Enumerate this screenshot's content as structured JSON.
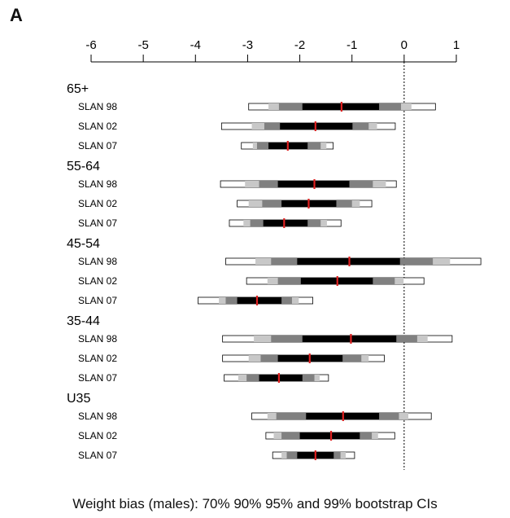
{
  "panel_label": "A",
  "caption": "Weight bias (males): 70% 90% 95% and 99% bootstrap CIs",
  "chart_data": {
    "type": "interval",
    "xlim": [
      -6,
      1
    ],
    "x_ticks": [
      -6,
      -5,
      -4,
      -3,
      -2,
      -1,
      0,
      1
    ],
    "x_tick_labels": [
      "-6",
      "-5",
      "-4",
      "-3",
      "-2",
      "-1",
      "0",
      "1"
    ],
    "reference_line": 0,
    "interval_levels": [
      "70%",
      "90%",
      "95%",
      "99%"
    ],
    "colors": {
      "ci70": "#000000",
      "ci90": "#808080",
      "ci95": "#c8c8c8",
      "ci99": "#ffffff",
      "estimate": "#e02020"
    },
    "groups": [
      {
        "name": "65+",
        "rows": [
          {
            "label": "SLAN 98",
            "estimate": -1.2,
            "ci70": [
              -1.95,
              -0.48
            ],
            "ci90": [
              -2.4,
              -0.06
            ],
            "ci95": [
              -2.6,
              0.14
            ],
            "ci99": [
              -2.98,
              0.6
            ]
          },
          {
            "label": "SLAN 02",
            "estimate": -1.7,
            "ci70": [
              -2.38,
              -0.99
            ],
            "ci90": [
              -2.68,
              -0.68
            ],
            "ci95": [
              -2.92,
              -0.52
            ],
            "ci99": [
              -3.5,
              -0.17
            ]
          },
          {
            "label": "SLAN 07",
            "estimate": -2.23,
            "ci70": [
              -2.6,
              -1.85
            ],
            "ci90": [
              -2.82,
              -1.6
            ],
            "ci95": [
              -2.9,
              -1.49
            ],
            "ci99": [
              -3.12,
              -1.36
            ]
          }
        ]
      },
      {
        "name": "55-64",
        "rows": [
          {
            "label": "SLAN 98",
            "estimate": -1.72,
            "ci70": [
              -2.42,
              -1.05
            ],
            "ci90": [
              -2.78,
              -0.6
            ],
            "ci95": [
              -3.05,
              -0.35
            ],
            "ci99": [
              -3.52,
              -0.15
            ]
          },
          {
            "label": "SLAN 02",
            "estimate": -1.83,
            "ci70": [
              -2.35,
              -1.3
            ],
            "ci90": [
              -2.72,
              -1.0
            ],
            "ci95": [
              -2.98,
              -0.85
            ],
            "ci99": [
              -3.2,
              -0.62
            ]
          },
          {
            "label": "SLAN 07",
            "estimate": -2.3,
            "ci70": [
              -2.7,
              -1.85
            ],
            "ci90": [
              -2.95,
              -1.6
            ],
            "ci95": [
              -3.08,
              -1.48
            ],
            "ci99": [
              -3.35,
              -1.21
            ]
          }
        ]
      },
      {
        "name": "45-54",
        "rows": [
          {
            "label": "SLAN 98",
            "estimate": -1.05,
            "ci70": [
              -2.05,
              -0.08
            ],
            "ci90": [
              -2.55,
              0.55
            ],
            "ci95": [
              -2.85,
              0.88
            ],
            "ci99": [
              -3.42,
              1.47
            ]
          },
          {
            "label": "SLAN 02",
            "estimate": -1.28,
            "ci70": [
              -1.98,
              -0.6
            ],
            "ci90": [
              -2.42,
              -0.18
            ],
            "ci95": [
              -2.62,
              -0.01
            ],
            "ci99": [
              -3.02,
              0.38
            ]
          },
          {
            "label": "SLAN 07",
            "estimate": -2.82,
            "ci70": [
              -3.2,
              -2.35
            ],
            "ci90": [
              -3.42,
              -2.15
            ],
            "ci95": [
              -3.55,
              -2.02
            ],
            "ci99": [
              -3.95,
              -1.75
            ]
          }
        ]
      },
      {
        "name": "35-44",
        "rows": [
          {
            "label": "SLAN 98",
            "estimate": -1.02,
            "ci70": [
              -1.95,
              -0.15
            ],
            "ci90": [
              -2.55,
              0.25
            ],
            "ci95": [
              -2.88,
              0.45
            ],
            "ci99": [
              -3.48,
              0.92
            ]
          },
          {
            "label": "SLAN 02",
            "estimate": -1.81,
            "ci70": [
              -2.42,
              -1.18
            ],
            "ci90": [
              -2.75,
              -0.82
            ],
            "ci95": [
              -2.98,
              -0.68
            ],
            "ci99": [
              -3.48,
              -0.38
            ]
          },
          {
            "label": "SLAN 07",
            "estimate": -2.4,
            "ci70": [
              -2.78,
              -1.95
            ],
            "ci90": [
              -3.02,
              -1.72
            ],
            "ci95": [
              -3.18,
              -1.62
            ],
            "ci99": [
              -3.45,
              -1.45
            ]
          }
        ]
      },
      {
        "name": "U35",
        "rows": [
          {
            "label": "SLAN 98",
            "estimate": -1.17,
            "ci70": [
              -1.88,
              -0.48
            ],
            "ci90": [
              -2.45,
              -0.1
            ],
            "ci95": [
              -2.62,
              0.08
            ],
            "ci99": [
              -2.92,
              0.52
            ]
          },
          {
            "label": "SLAN 02",
            "estimate": -1.4,
            "ci70": [
              -2.0,
              -0.85
            ],
            "ci90": [
              -2.35,
              -0.62
            ],
            "ci95": [
              -2.5,
              -0.5
            ],
            "ci99": [
              -2.65,
              -0.18
            ]
          },
          {
            "label": "SLAN 07",
            "estimate": -1.7,
            "ci70": [
              -2.05,
              -1.35
            ],
            "ci90": [
              -2.25,
              -1.22
            ],
            "ci95": [
              -2.35,
              -1.12
            ],
            "ci99": [
              -2.52,
              -0.95
            ]
          }
        ]
      }
    ]
  }
}
